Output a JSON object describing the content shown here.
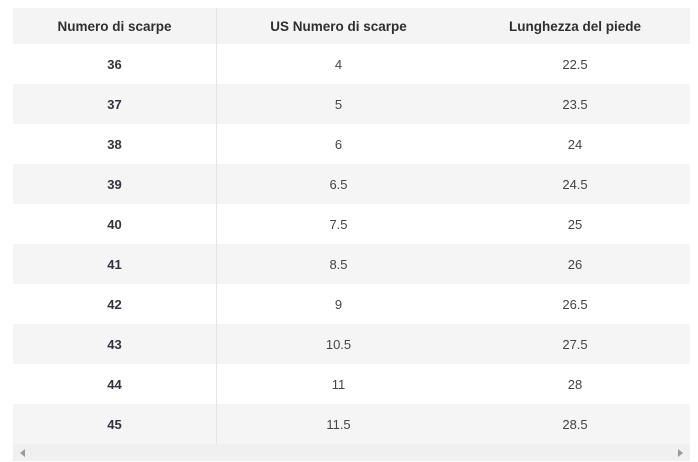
{
  "table": {
    "columns": [
      "Numero di scarpe",
      "US Numero di scarpe",
      "Lunghezza del piede"
    ],
    "rows": [
      [
        "36",
        "4",
        "22.5"
      ],
      [
        "37",
        "5",
        "23.5"
      ],
      [
        "38",
        "6",
        "24"
      ],
      [
        "39",
        "6.5",
        "24.5"
      ],
      [
        "40",
        "7.5",
        "25"
      ],
      [
        "41",
        "8.5",
        "26"
      ],
      [
        "42",
        "9",
        "26.5"
      ],
      [
        "43",
        "10.5",
        "27.5"
      ],
      [
        "44",
        "11",
        "28"
      ],
      [
        "45",
        "11.5",
        "28.5"
      ]
    ]
  },
  "scrollbar": {
    "left_arrow_icon": "left-triangle",
    "right_arrow_icon": "right-triangle"
  },
  "colors": {
    "header_bg": "#f4f4f4",
    "row_alt_bg": "#f5f5f5",
    "column_divider": "#e4e4e4",
    "scrollbar_track": "#f0f0f0",
    "scrollbar_arrow": "#9a9a9a",
    "header_text": "#2f2f2f",
    "cell_text": "#444444",
    "row_label_text": "#33333d"
  }
}
